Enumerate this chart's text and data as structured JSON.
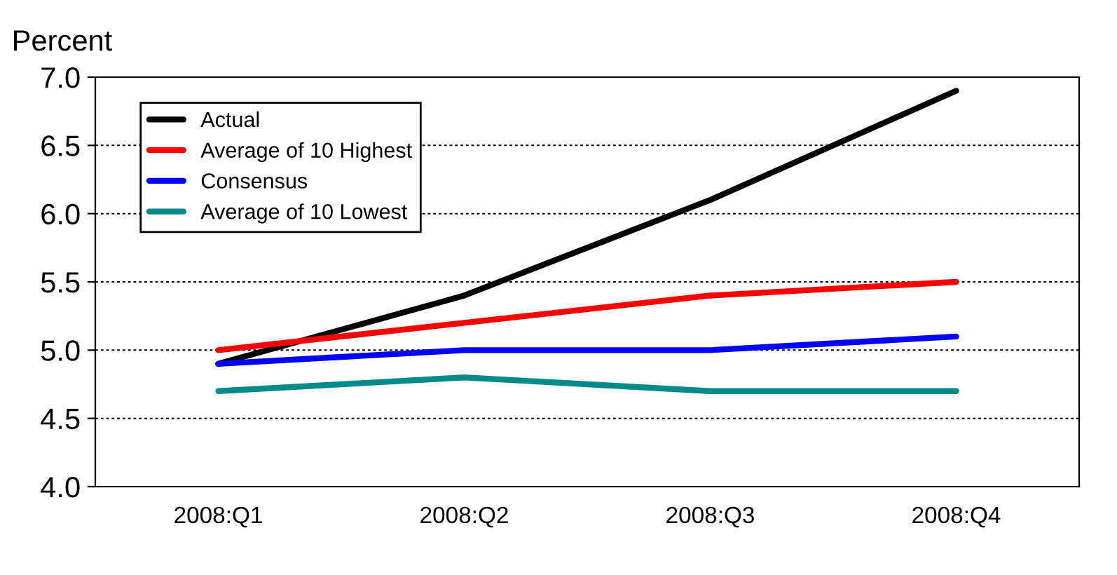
{
  "chart_data": {
    "type": "line",
    "ylabel": "Percent",
    "categories": [
      "2008:Q1",
      "2008:Q2",
      "2008:Q3",
      "2008:Q4"
    ],
    "series": [
      {
        "name": "Actual",
        "color": "#000000",
        "values": [
          4.9,
          5.4,
          6.1,
          6.9
        ]
      },
      {
        "name": "Average of 10 Highest",
        "color": "#ff0000",
        "values": [
          5.0,
          5.2,
          5.4,
          5.5
        ]
      },
      {
        "name": "Consensus",
        "color": "#0000ff",
        "values": [
          4.9,
          5.0,
          5.0,
          5.1
        ]
      },
      {
        "name": "Average of 10 Lowest",
        "color": "#008b8b",
        "values": [
          4.7,
          4.8,
          4.7,
          4.7
        ]
      }
    ],
    "ylim": [
      4.0,
      7.0
    ],
    "yticks": [
      {
        "value": 4.0,
        "label": "4.0"
      },
      {
        "value": 4.5,
        "label": "4.5"
      },
      {
        "value": 5.0,
        "label": "5.0"
      },
      {
        "value": 5.5,
        "label": "5.5"
      },
      {
        "value": 6.0,
        "label": "6.0"
      },
      {
        "value": 6.5,
        "label": "6.5"
      },
      {
        "value": 7.0,
        "label": "7.0"
      }
    ],
    "grid": "y",
    "legend": "top left",
    "marker": "none",
    "line_style": "solid"
  }
}
